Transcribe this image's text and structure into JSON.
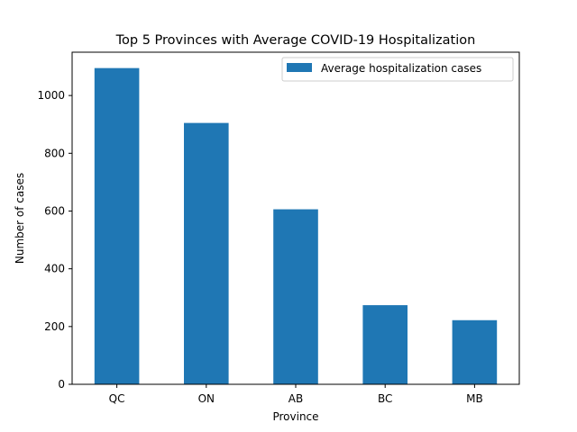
{
  "chart_data": {
    "type": "bar",
    "title": "Top 5 Provinces with Average COVID-19 Hospitalization",
    "xlabel": "Province",
    "ylabel": "Number of cases",
    "categories": [
      "QC",
      "ON",
      "AB",
      "BC",
      "MB"
    ],
    "series": [
      {
        "name": "Average hospitalization cases",
        "values": [
          1095,
          905,
          606,
          274,
          222
        ],
        "color": "#1f77b4"
      }
    ],
    "ylim": [
      0,
      1150
    ],
    "yticks": [
      0,
      200,
      400,
      600,
      800,
      1000
    ],
    "grid": false,
    "legend_position": "top-right"
  }
}
